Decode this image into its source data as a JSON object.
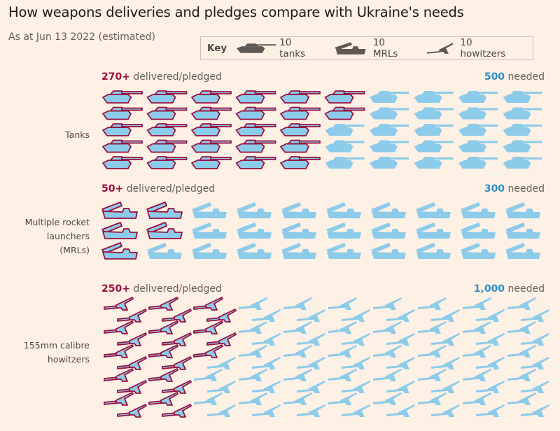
{
  "title": "How weapons deliveries and pledges compare with Ukraine's needs",
  "subtitle": "As at Jun 13 2022 (estimated)",
  "key": {
    "label": "Key",
    "items": [
      {
        "icon": "tank-icon",
        "label": "10 tanks"
      },
      {
        "icon": "mrl-icon",
        "label": "10 MRLs"
      },
      {
        "icon": "howitzer-icon",
        "label": "10 howitzers"
      }
    ]
  },
  "colors": {
    "delivered_outline": "#990f3d",
    "icon_fill": "#8ccbea",
    "delivered_text": "#990f3d",
    "needed_text": "#2e8fc8",
    "key_icon": "#5e5955",
    "background": "#fdf0e5"
  },
  "chart_data": {
    "type": "pictogram",
    "unit_per_icon": 10,
    "rows": [
      {
        "category": "Tanks",
        "delivered_label": "270+",
        "delivered_suffix": " delivered/pledged",
        "needed_label": "500",
        "needed_suffix": " needed",
        "delivered": 270,
        "needed": 500,
        "icon": "tank"
      },
      {
        "category": "Multiple rocket launchers (MRLs)",
        "category_lines": [
          "Multiple rocket",
          "launchers",
          "(MRLs)"
        ],
        "delivered_label": "50+",
        "delivered_suffix": " delivered/pledged",
        "needed_label": "300",
        "needed_suffix": " needed",
        "delivered": 50,
        "needed": 300,
        "icon": "mrl"
      },
      {
        "category": "155mm calibre howitzers",
        "category_lines": [
          "155mm calibre",
          "howitzers"
        ],
        "delivered_label": "250+",
        "delivered_suffix": " delivered/pledged",
        "needed_label": "1,000",
        "needed_suffix": " needed",
        "delivered": 250,
        "needed": 1000,
        "icon": "howitzer"
      }
    ]
  }
}
